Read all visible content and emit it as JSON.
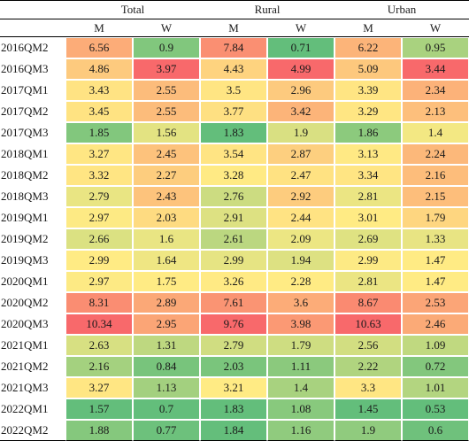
{
  "chart_data": {
    "type": "heatmap",
    "groups": [
      "Total",
      "Rural",
      "Urban"
    ],
    "subgroups": [
      "M",
      "W"
    ],
    "rows": [
      "2016QM2",
      "2016QM3",
      "2017QM1",
      "2017QM2",
      "2017QM3",
      "2018QM1",
      "2018QM2",
      "2018QM3",
      "2019QM1",
      "2019QM2",
      "2019QM3",
      "2020QM1",
      "2020QM2",
      "2020QM3",
      "2021QM1",
      "2021QM2",
      "2021QM3",
      "2022QM1",
      "2022QM2"
    ],
    "values": [
      [
        "6.56",
        "0.9",
        "7.84",
        "0.71",
        "6.22",
        "0.95"
      ],
      [
        "4.86",
        "3.97",
        "4.43",
        "4.99",
        "5.09",
        "3.44"
      ],
      [
        "3.43",
        "2.55",
        "3.5",
        "2.96",
        "3.39",
        "2.34"
      ],
      [
        "3.45",
        "2.55",
        "3.77",
        "3.42",
        "3.29",
        "2.13"
      ],
      [
        "1.85",
        "1.56",
        "1.83",
        "1.9",
        "1.86",
        "1.4"
      ],
      [
        "3.27",
        "2.45",
        "3.54",
        "2.87",
        "3.13",
        "2.24"
      ],
      [
        "3.32",
        "2.27",
        "3.28",
        "2.47",
        "3.34",
        "2.16"
      ],
      [
        "2.79",
        "2.43",
        "2.76",
        "2.92",
        "2.81",
        "2.15"
      ],
      [
        "2.97",
        "2.03",
        "2.91",
        "2.44",
        "3.01",
        "1.79"
      ],
      [
        "2.66",
        "1.6",
        "2.61",
        "2.09",
        "2.69",
        "1.33"
      ],
      [
        "2.99",
        "1.64",
        "2.99",
        "1.94",
        "2.99",
        "1.47"
      ],
      [
        "2.97",
        "1.75",
        "3.26",
        "2.28",
        "2.81",
        "1.47"
      ],
      [
        "8.31",
        "2.89",
        "7.61",
        "3.6",
        "8.67",
        "2.53"
      ],
      [
        "10.34",
        "2.95",
        "9.76",
        "3.98",
        "10.63",
        "2.46"
      ],
      [
        "2.63",
        "1.31",
        "2.79",
        "1.79",
        "2.56",
        "1.09"
      ],
      [
        "2.16",
        "0.84",
        "2.03",
        "1.11",
        "2.22",
        "0.72"
      ],
      [
        "3.27",
        "1.13",
        "3.21",
        "1.4",
        "3.3",
        "1.01"
      ],
      [
        "1.57",
        "0.7",
        "1.83",
        "1.08",
        "1.45",
        "0.53"
      ],
      [
        "1.88",
        "0.77",
        "1.84",
        "1.16",
        "1.9",
        "0.6"
      ]
    ],
    "column_colour_scale": {
      "low": "#63be7b",
      "mid": "#ffeb84",
      "high": "#f8696b"
    }
  }
}
